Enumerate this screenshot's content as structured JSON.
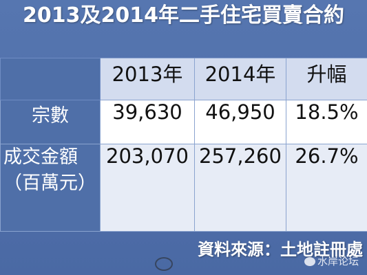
{
  "title": "2013及2014年二手住宅買賣合約",
  "chart_data": {
    "type": "table",
    "columns": [
      "2013年",
      "2014年",
      "升幅"
    ],
    "rows": [
      {
        "label": "宗數",
        "values": [
          "39,630",
          "46,950",
          "18.5%"
        ]
      },
      {
        "label_line1": "成交金額",
        "label_line2": "（百萬元）",
        "values": [
          "203,070",
          "257,260",
          "26.7%"
        ]
      }
    ]
  },
  "source": "資料來源：土地註冊處",
  "watermark": "水岸论坛"
}
